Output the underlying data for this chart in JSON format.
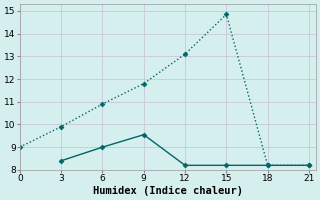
{
  "xlabel": "Humidex (Indice chaleur)",
  "line1_x": [
    0,
    3,
    6,
    9,
    12,
    15,
    18,
    21
  ],
  "line1_y": [
    9.0,
    9.9,
    10.9,
    11.8,
    13.1,
    14.85,
    8.2,
    8.2
  ],
  "line2_x": [
    3,
    6,
    9,
    12,
    15,
    18,
    21
  ],
  "line2_y": [
    8.4,
    9.0,
    9.55,
    8.2,
    8.2,
    8.2,
    8.2
  ],
  "line1_style": "dotted",
  "line2_style": "-",
  "line_color": "#006666",
  "marker": "D",
  "markersize": 2.5,
  "xlim": [
    0,
    21.5
  ],
  "ylim": [
    8.0,
    15.3
  ],
  "xticks": [
    0,
    3,
    6,
    9,
    12,
    15,
    18,
    21
  ],
  "yticks": [
    8,
    9,
    10,
    11,
    12,
    13,
    14,
    15
  ],
  "bg_color": "#d5eeee",
  "grid_color": "#c8dede",
  "tick_fontsize": 6.5,
  "label_fontsize": 7.5,
  "linewidth": 1.0
}
